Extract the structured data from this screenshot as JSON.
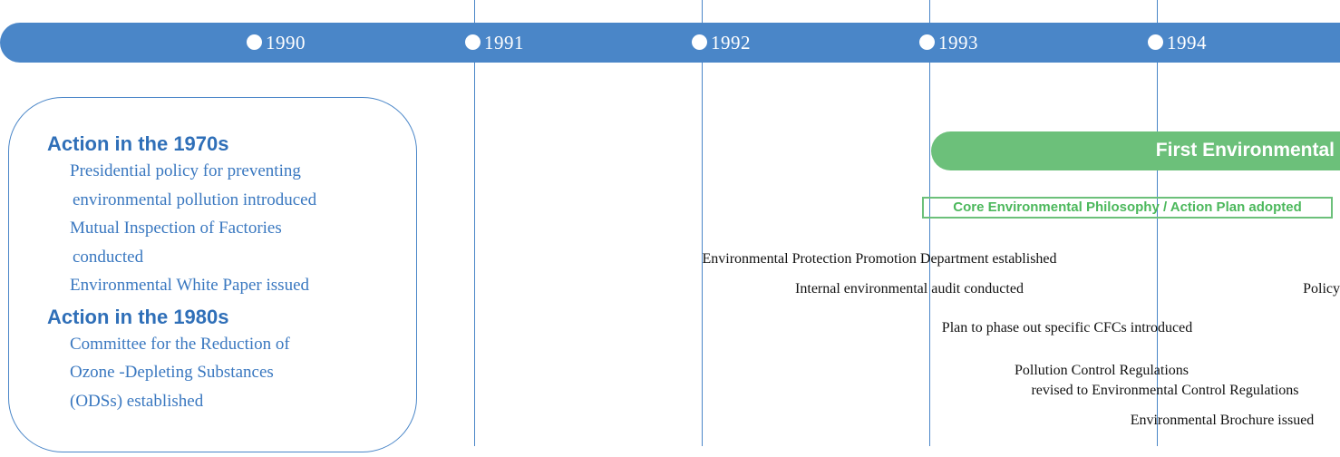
{
  "timeline": {
    "years": [
      "1990",
      "1991",
      "1992",
      "1993",
      "1994"
    ],
    "phase": "First Environmental",
    "core": "Core Environmental Philosophy / Action Plan adopted",
    "events": [
      "Environmental Protection Promotion Department established",
      "Internal environmental audit conducted",
      "Policy",
      "Plan to phase out specific CFCs introduced",
      "Pollution Control Regulations",
      "revised to Environmental Control Regulations",
      "Environmental Brochure issued"
    ]
  },
  "history": [
    {
      "heading": "Action in the 1970s",
      "items": [
        [
          "Presidential policy for preventing",
          "environmental pollution introduced"
        ],
        [
          "Mutual Inspection of Factories",
          "conducted"
        ],
        [
          "Environmental White Paper issued"
        ]
      ]
    },
    {
      "heading": "Action in the 1980s",
      "items": [
        [
          "Committee for the Reduction of",
          "Ozone -Depleting Substances",
          "(ODSs) established"
        ]
      ]
    }
  ]
}
